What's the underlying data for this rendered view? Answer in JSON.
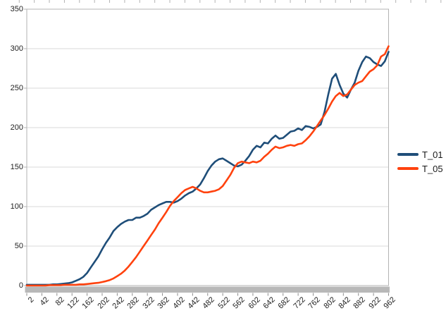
{
  "chart": {
    "title": "",
    "legend_items": [
      "T_01",
      "T_05"
    ]
  },
  "chart_data": {
    "type": "line",
    "title": "",
    "xlabel": "",
    "ylabel": "",
    "grid": "horizontal",
    "legend_position": "right-middle",
    "ylim": [
      0,
      350
    ],
    "xlim": [
      2,
      962
    ],
    "y_ticks": [
      0,
      50,
      100,
      150,
      200,
      250,
      300,
      350
    ],
    "x_tick_labels": [
      "2",
      "42",
      "82",
      "122",
      "162",
      "202",
      "242",
      "282",
      "322",
      "362",
      "402",
      "442",
      "482",
      "522",
      "562",
      "602",
      "642",
      "682",
      "722",
      "762",
      "802",
      "842",
      "882",
      "922",
      "962"
    ],
    "x": [
      2,
      12,
      22,
      32,
      42,
      52,
      62,
      72,
      82,
      92,
      102,
      112,
      122,
      132,
      142,
      152,
      162,
      172,
      182,
      192,
      202,
      212,
      222,
      232,
      242,
      252,
      262,
      272,
      282,
      292,
      302,
      312,
      322,
      332,
      342,
      352,
      362,
      372,
      382,
      392,
      402,
      412,
      422,
      432,
      442,
      452,
      462,
      472,
      482,
      492,
      502,
      512,
      522,
      532,
      542,
      552,
      562,
      572,
      582,
      592,
      602,
      612,
      622,
      632,
      642,
      652,
      662,
      672,
      682,
      692,
      702,
      712,
      722,
      732,
      742,
      752,
      762,
      772,
      782,
      792,
      802,
      812,
      822,
      832,
      842,
      852,
      862,
      872,
      882,
      892,
      902,
      912,
      922,
      932,
      942,
      952,
      962
    ],
    "series": [
      {
        "name": "T_01",
        "color": "#1f4e79",
        "values": [
          1,
          1,
          1,
          1,
          1,
          1,
          1,
          1.5,
          1.5,
          2,
          2.5,
          3,
          4,
          6,
          8,
          11,
          16,
          23,
          30,
          37,
          46,
          54,
          61,
          69,
          74,
          78,
          81,
          83,
          83,
          86,
          86,
          88,
          91,
          96,
          99,
          102,
          104,
          106,
          106,
          105,
          107,
          110,
          114,
          117,
          119,
          123,
          128,
          136,
          145,
          152,
          157,
          160,
          161,
          158,
          155,
          152,
          151,
          153,
          158,
          164,
          172,
          177,
          175,
          181,
          180,
          186,
          190,
          186,
          187,
          191,
          195,
          196,
          199,
          197,
          202,
          201,
          199,
          201,
          204,
          220,
          242,
          262,
          268,
          254,
          243,
          238,
          248,
          257,
          272,
          283,
          290,
          288,
          283,
          280,
          278,
          284,
          296
        ]
      },
      {
        "name": "T_05",
        "color": "#ff420e",
        "values": [
          0,
          0,
          0,
          0,
          0,
          0,
          0.5,
          0.5,
          0.5,
          0.5,
          1,
          1,
          1,
          1,
          1.5,
          1.5,
          2,
          2.5,
          3,
          3.5,
          4.5,
          5.5,
          7,
          9,
          12,
          15,
          19,
          24,
          30,
          36,
          43,
          50,
          57,
          64,
          71,
          79,
          86,
          93,
          101,
          107,
          112,
          117,
          121,
          123,
          125,
          123,
          120,
          118,
          118,
          119,
          120,
          122,
          126,
          133,
          140,
          149,
          155,
          157,
          156,
          155,
          157,
          156,
          158,
          163,
          167,
          172,
          176,
          174,
          175,
          177,
          178,
          177,
          179,
          180,
          184,
          189,
          195,
          202,
          209,
          216,
          224,
          233,
          240,
          244,
          240,
          242,
          248,
          254,
          257,
          259,
          265,
          271,
          274,
          279,
          290,
          293,
          303
        ]
      }
    ],
    "colors": {
      "gridline": "#d9d9d9",
      "plot_border": "#b3b3b3",
      "axis_line": "#9a9a9a",
      "axis_band": "#b8b8b8",
      "tick_mark": "#8c8c8c",
      "ruler_tick": "#b3b3b3",
      "label_text": "#222222",
      "background": "#ffffff"
    }
  }
}
